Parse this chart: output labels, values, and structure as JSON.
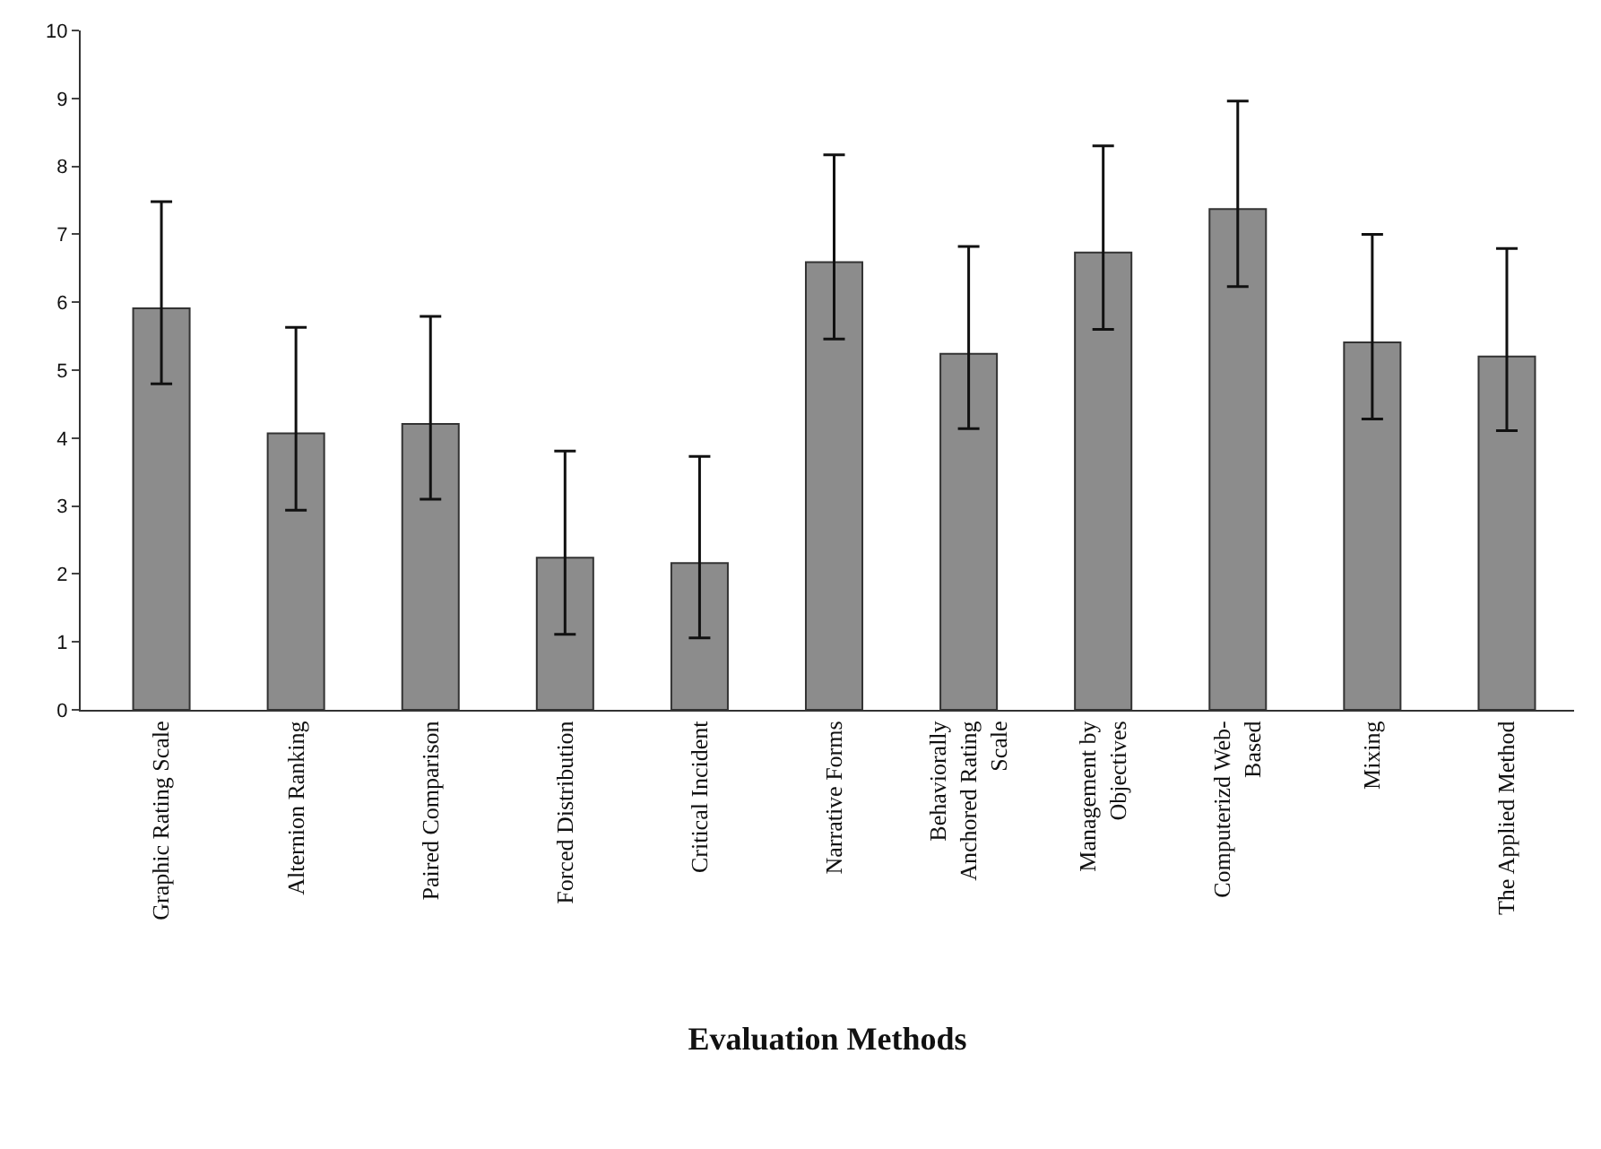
{
  "chart_data": {
    "type": "bar",
    "xlabel": "Evaluation Methods",
    "categories": [
      "Graphic Rating Scale",
      "Alternion Ranking",
      "Paired Comparison",
      "Forced Distribution",
      "Critical Incident",
      "Narrative Forms",
      "Behaviorally Anchored Rating Scale",
      "Management by Objectives",
      "Computerizd Web-Based",
      "Mixing",
      "The Applied Method"
    ],
    "values": [
      5.91,
      4.07,
      4.21,
      2.24,
      2.16,
      6.59,
      5.24,
      6.73,
      7.37,
      5.41,
      5.2
    ],
    "errors": [
      [
        4.8,
        7.48
      ],
      [
        2.94,
        5.63
      ],
      [
        3.1,
        5.79
      ],
      [
        1.11,
        3.81
      ],
      [
        1.06,
        3.73
      ],
      [
        5.46,
        8.17
      ],
      [
        4.14,
        6.82
      ],
      [
        5.6,
        8.3
      ],
      [
        6.23,
        8.96
      ],
      [
        4.28,
        7.0
      ],
      [
        4.11,
        6.79
      ]
    ],
    "color": "#8c8c8c",
    "ylim": [
      0,
      10
    ],
    "yticks": [
      0,
      1,
      2,
      3,
      4,
      5,
      6,
      7,
      8,
      9,
      10
    ],
    "legend": false
  }
}
